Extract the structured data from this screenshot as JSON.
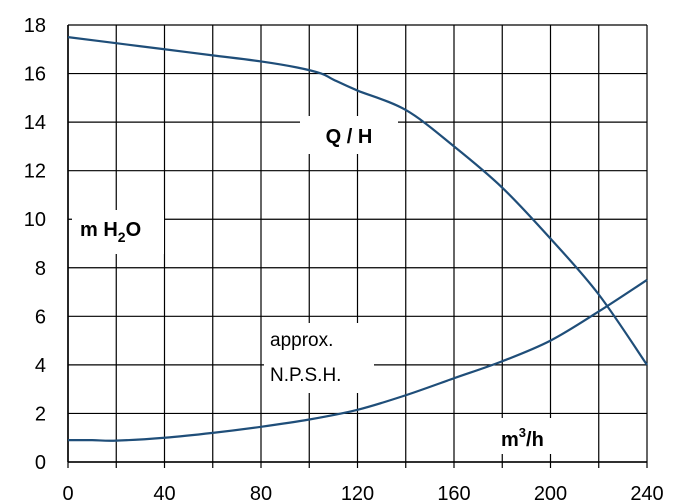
{
  "chart_data": {
    "type": "line",
    "x_ticks": [
      "0",
      "40",
      "80",
      "120",
      "160",
      "200",
      "240"
    ],
    "y_ticks": [
      "0",
      "2",
      "4",
      "6",
      "8",
      "10",
      "12",
      "14",
      "16",
      "18"
    ],
    "xlim": [
      0,
      240
    ],
    "ylim": [
      0,
      18
    ],
    "x_grid_step": 20,
    "y_grid_step": 2,
    "grid": true,
    "series": [
      {
        "id": "qh",
        "color": "#1f4e79",
        "points": [
          [
            0,
            17.5
          ],
          [
            20,
            17.25
          ],
          [
            40,
            17.0
          ],
          [
            60,
            16.75
          ],
          [
            80,
            16.5
          ],
          [
            95,
            16.25
          ],
          [
            105,
            16.0
          ],
          [
            110,
            15.75
          ],
          [
            120,
            15.3
          ],
          [
            140,
            14.5
          ],
          [
            160,
            13.0
          ],
          [
            180,
            11.3
          ],
          [
            200,
            9.2
          ],
          [
            220,
            6.9
          ],
          [
            240,
            4.0
          ]
        ]
      },
      {
        "id": "npsh",
        "color": "#1f4e79",
        "points": [
          [
            0,
            0.9
          ],
          [
            10,
            0.9
          ],
          [
            20,
            0.88
          ],
          [
            40,
            1.0
          ],
          [
            60,
            1.2
          ],
          [
            80,
            1.45
          ],
          [
            100,
            1.75
          ],
          [
            120,
            2.15
          ],
          [
            140,
            2.75
          ],
          [
            160,
            3.45
          ],
          [
            180,
            4.15
          ],
          [
            200,
            5.0
          ],
          [
            220,
            6.2
          ],
          [
            240,
            7.5
          ]
        ]
      }
    ],
    "annotations": {
      "qh_label": "Q / H",
      "yunit_prefix": "m H",
      "yunit_sub": "2",
      "yunit_suffix": "O",
      "npsh_line1": "approx.",
      "npsh_line2": "N.P.S.H.",
      "xunit_prefix": "m",
      "xunit_sup": "3",
      "xunit_suffix": "/h"
    }
  }
}
